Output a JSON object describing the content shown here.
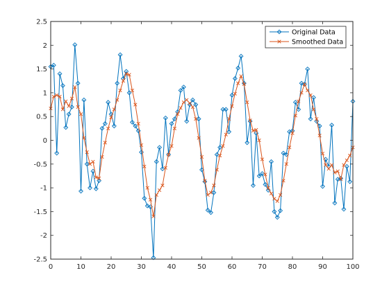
{
  "chart_data": {
    "type": "line",
    "xlim": [
      0,
      100
    ],
    "ylim": [
      -2.5,
      2.5
    ],
    "x_ticks": [
      0,
      10,
      20,
      30,
      40,
      50,
      60,
      70,
      80,
      90,
      100
    ],
    "y_ticks": [
      -2.5,
      -2,
      -1.5,
      -1,
      -0.5,
      0,
      0.5,
      1,
      1.5,
      2,
      2.5
    ],
    "x_tick_labels": [
      "0",
      "10",
      "20",
      "30",
      "40",
      "50",
      "60",
      "70",
      "80",
      "90",
      "100"
    ],
    "y_tick_labels": [
      "-2.5",
      "-2",
      "-1.5",
      "-1",
      "-0.5",
      "0",
      "0.5",
      "1",
      "1.5",
      "2",
      "2.5"
    ],
    "grid": false,
    "legend_position": "top-right",
    "x": [
      0,
      1,
      2,
      3,
      4,
      5,
      6,
      7,
      8,
      9,
      10,
      11,
      12,
      13,
      14,
      15,
      16,
      17,
      18,
      19,
      20,
      21,
      22,
      23,
      24,
      25,
      26,
      27,
      28,
      29,
      30,
      31,
      32,
      33,
      34,
      35,
      36,
      37,
      38,
      39,
      40,
      41,
      42,
      43,
      44,
      45,
      46,
      47,
      48,
      49,
      50,
      51,
      52,
      53,
      54,
      55,
      56,
      57,
      58,
      59,
      60,
      61,
      62,
      63,
      64,
      65,
      66,
      67,
      68,
      69,
      70,
      71,
      72,
      73,
      74,
      75,
      76,
      77,
      78,
      79,
      80,
      81,
      82,
      83,
      84,
      85,
      86,
      87,
      88,
      89,
      90,
      91,
      92,
      93,
      94,
      95,
      96,
      97,
      98,
      99,
      100
    ],
    "series": [
      {
        "name": "Original Data",
        "color": "#0072BD",
        "marker": "diamond",
        "values": [
          1.55,
          1.58,
          -0.27,
          1.4,
          1.15,
          0.27,
          0.55,
          0.7,
          2.01,
          1.2,
          -1.07,
          0.85,
          -0.5,
          -1.0,
          -0.65,
          -1.02,
          -0.85,
          0.25,
          0.35,
          0.8,
          0.55,
          0.3,
          1.2,
          1.8,
          1.3,
          1.45,
          1.0,
          0.38,
          0.3,
          0.2,
          -0.25,
          -1.22,
          -1.38,
          -1.4,
          -2.47,
          -0.45,
          -0.15,
          -0.6,
          0.47,
          -0.3,
          0.35,
          0.45,
          0.6,
          1.05,
          1.12,
          0.4,
          0.75,
          0.85,
          0.75,
          0.45,
          -0.62,
          -0.87,
          -1.47,
          -1.52,
          -1.1,
          -0.3,
          -0.15,
          0.65,
          0.65,
          0.18,
          0.95,
          1.3,
          1.52,
          1.77,
          1.2,
          -0.05,
          0.4,
          -0.95,
          0.15,
          -0.75,
          -0.7,
          -0.93,
          -1.05,
          -0.45,
          -1.5,
          -1.62,
          -1.48,
          -0.27,
          -0.3,
          0.18,
          0.2,
          0.8,
          0.65,
          1.2,
          1.18,
          1.5,
          0.45,
          0.9,
          0.4,
          0.3,
          -0.97,
          -0.4,
          -0.55,
          0.32,
          -1.32,
          -0.82,
          -0.8,
          -1.45,
          -0.55,
          -0.87,
          0.82
        ]
      },
      {
        "name": "Smoothed Data",
        "color": "#D95319",
        "marker": "x",
        "values": [
          0.67,
          0.92,
          0.95,
          0.92,
          0.65,
          0.82,
          0.72,
          0.88,
          1.12,
          0.7,
          0.55,
          0.05,
          -0.25,
          -0.5,
          -0.45,
          -0.78,
          -0.8,
          -0.35,
          -0.05,
          0.25,
          0.48,
          0.65,
          0.85,
          1.05,
          1.25,
          1.4,
          1.38,
          1.05,
          0.75,
          0.35,
          -0.1,
          -0.55,
          -1.0,
          -1.25,
          -1.6,
          -1.15,
          -1.05,
          -0.95,
          -0.58,
          -0.3,
          -0.12,
          0.25,
          0.55,
          0.68,
          0.8,
          0.85,
          0.78,
          0.7,
          0.45,
          0.05,
          -0.35,
          -0.85,
          -1.15,
          -1.1,
          -0.95,
          -0.62,
          -0.32,
          -0.12,
          0.12,
          0.45,
          0.72,
          0.98,
          1.2,
          1.35,
          1.18,
          0.8,
          0.42,
          0.2,
          0.22,
          0.0,
          -0.4,
          -0.72,
          -1.0,
          -1.12,
          -1.23,
          -1.28,
          -1.15,
          -0.85,
          -0.5,
          -0.15,
          0.15,
          0.52,
          0.82,
          1.0,
          1.18,
          1.05,
          0.95,
          0.65,
          0.45,
          0.1,
          -0.28,
          -0.52,
          -0.6,
          -0.52,
          -0.68,
          -0.65,
          -0.82,
          -0.52,
          -0.42,
          -0.32,
          -0.15
        ]
      }
    ]
  }
}
